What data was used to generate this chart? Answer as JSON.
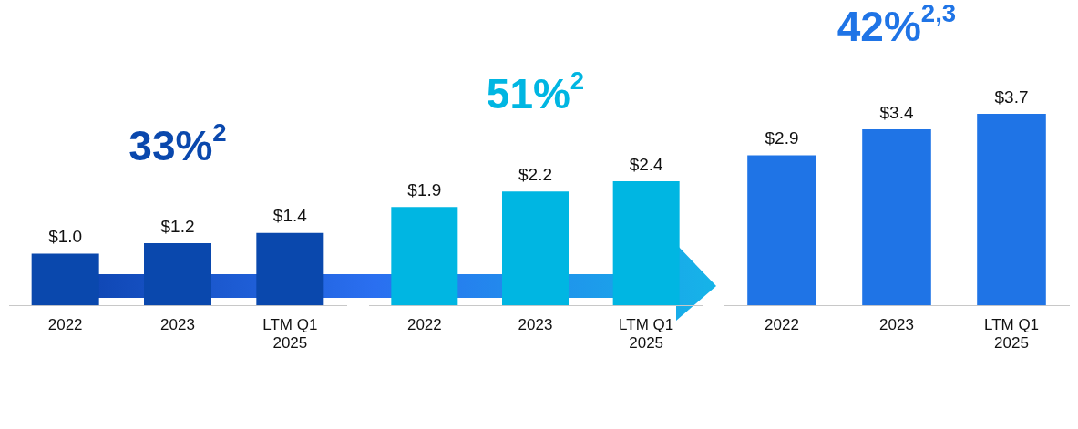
{
  "chart_data": [
    {
      "type": "bar",
      "categories": [
        "2022",
        "2023",
        "LTM Q1 2025"
      ],
      "values": [
        1.0,
        1.2,
        1.4
      ],
      "value_labels": [
        "$1.0",
        "$1.2",
        "$1.4"
      ],
      "color": "#0a48ad",
      "tick_labels": "x",
      "grid": false,
      "legend": false,
      "annotations": [
        "33%$^{2}$"
      ]
    },
    {
      "type": "bar",
      "categories": [
        "2022",
        "2023",
        "LTM Q1 2025"
      ],
      "values": [
        1.9,
        2.2,
        2.4
      ],
      "value_labels": [
        "$1.9",
        "$2.2",
        "$2.4"
      ],
      "color": "#00b6e2",
      "tick_labels": "x",
      "grid": false,
      "legend": false,
      "annotations": [
        "51%$^{2}$"
      ]
    },
    {
      "type": "bar",
      "categories": [
        "2022",
        "2023",
        "LTM Q1 2025"
      ],
      "values": [
        2.9,
        3.4,
        3.7
      ],
      "value_labels": [
        "$2.9",
        "$3.4",
        "$3.7"
      ],
      "color": "#1f74e6",
      "tick_labels": "x",
      "grid": false,
      "legend": false,
      "annotations": [
        "42%$^{2,3}$"
      ]
    }
  ]
}
